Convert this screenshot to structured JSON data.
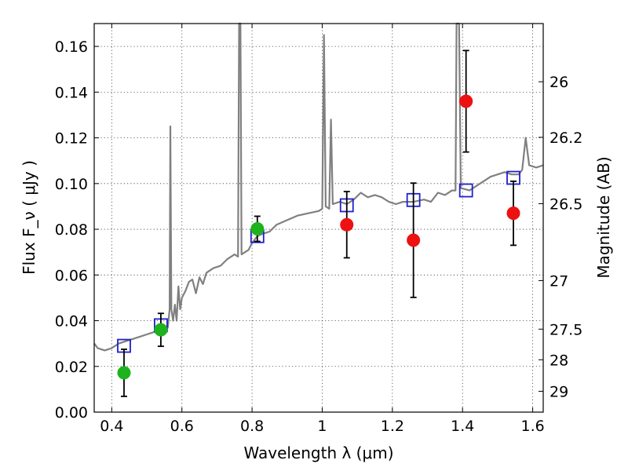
{
  "chart_data": {
    "type": "scatter",
    "xlabel": "Wavelength  λ (μm)",
    "ylabel": "Flux  F_ν  ( μJy )",
    "ylabel_right": "Magnitude (AB)",
    "xlim": [
      0.35,
      1.63
    ],
    "ylim": [
      0.0,
      0.17
    ],
    "grid": true,
    "x_ticks": [
      {
        "value": 0.4,
        "label": "0.4"
      },
      {
        "value": 0.6,
        "label": "0.6"
      },
      {
        "value": 0.8,
        "label": "0.8"
      },
      {
        "value": 1.0,
        "label": "1"
      },
      {
        "value": 1.2,
        "label": "1.2"
      },
      {
        "value": 1.4,
        "label": "1.4"
      },
      {
        "value": 1.6,
        "label": "1.6"
      }
    ],
    "y_ticks": [
      {
        "value": 0.0,
        "label": "0.00"
      },
      {
        "value": 0.02,
        "label": "0.02"
      },
      {
        "value": 0.04,
        "label": "0.04"
      },
      {
        "value": 0.06,
        "label": "0.06"
      },
      {
        "value": 0.08,
        "label": "0.08"
      },
      {
        "value": 0.1,
        "label": "0.10"
      },
      {
        "value": 0.12,
        "label": "0.12"
      },
      {
        "value": 0.14,
        "label": "0.14"
      },
      {
        "value": 0.16,
        "label": "0.16"
      }
    ],
    "mag_ticks": [
      {
        "mag": 26,
        "label": "26"
      },
      {
        "mag": 26.2,
        "label": "26.2"
      },
      {
        "mag": 26.5,
        "label": "26.5"
      },
      {
        "mag": 27,
        "label": "27"
      },
      {
        "mag": 27.5,
        "label": "27.5"
      },
      {
        "mag": 28,
        "label": "28"
      },
      {
        "mag": 29,
        "label": "29"
      }
    ],
    "series": [
      {
        "marker": "circle",
        "color": "#1db31d",
        "points": [
          {
            "x": 0.435,
            "y": 0.0172,
            "err": 0.0103
          },
          {
            "x": 0.54,
            "y": 0.036,
            "err": 0.0072
          },
          {
            "x": 0.815,
            "y": 0.0802,
            "err": 0.0055
          }
        ]
      },
      {
        "marker": "circle",
        "color": "#ee1111",
        "points": [
          {
            "x": 1.07,
            "y": 0.082,
            "err": 0.0145
          },
          {
            "x": 1.26,
            "y": 0.0752,
            "err": 0.025
          },
          {
            "x": 1.41,
            "y": 0.136,
            "err": 0.0222
          },
          {
            "x": 1.545,
            "y": 0.087,
            "err": 0.014
          }
        ]
      },
      {
        "marker": "open-square",
        "color": "#1f1fd0",
        "points": [
          {
            "x": 0.435,
            "y": 0.029
          },
          {
            "x": 0.54,
            "y": 0.038
          },
          {
            "x": 0.815,
            "y": 0.077
          },
          {
            "x": 1.07,
            "y": 0.0905
          },
          {
            "x": 1.26,
            "y": 0.0928
          },
          {
            "x": 1.41,
            "y": 0.097
          },
          {
            "x": 1.545,
            "y": 0.1025
          }
        ]
      },
      {
        "marker": "line",
        "color": "#808080",
        "points": [
          [
            0.35,
            0.03
          ],
          [
            0.36,
            0.028
          ],
          [
            0.38,
            0.027
          ],
          [
            0.4,
            0.028
          ],
          [
            0.42,
            0.03
          ],
          [
            0.44,
            0.031
          ],
          [
            0.46,
            0.032
          ],
          [
            0.48,
            0.033
          ],
          [
            0.5,
            0.034
          ],
          [
            0.52,
            0.035
          ],
          [
            0.54,
            0.035
          ],
          [
            0.555,
            0.036
          ],
          [
            0.56,
            0.037
          ],
          [
            0.565,
            0.045
          ],
          [
            0.567,
            0.125
          ],
          [
            0.57,
            0.045
          ],
          [
            0.575,
            0.04
          ],
          [
            0.58,
            0.047
          ],
          [
            0.585,
            0.04
          ],
          [
            0.59,
            0.055
          ],
          [
            0.595,
            0.045
          ],
          [
            0.6,
            0.05
          ],
          [
            0.61,
            0.053
          ],
          [
            0.62,
            0.057
          ],
          [
            0.63,
            0.058
          ],
          [
            0.64,
            0.052
          ],
          [
            0.65,
            0.059
          ],
          [
            0.66,
            0.056
          ],
          [
            0.67,
            0.061
          ],
          [
            0.69,
            0.063
          ],
          [
            0.71,
            0.064
          ],
          [
            0.73,
            0.067
          ],
          [
            0.75,
            0.069
          ],
          [
            0.76,
            0.068
          ],
          [
            0.763,
            0.17
          ],
          [
            0.767,
            0.17
          ],
          [
            0.77,
            0.069
          ],
          [
            0.79,
            0.071
          ],
          [
            0.8,
            0.074
          ],
          [
            0.815,
            0.077
          ],
          [
            0.83,
            0.078
          ],
          [
            0.85,
            0.079
          ],
          [
            0.87,
            0.082
          ],
          [
            0.9,
            0.084
          ],
          [
            0.93,
            0.086
          ],
          [
            0.96,
            0.087
          ],
          [
            0.99,
            0.088
          ],
          [
            1.0,
            0.089
          ],
          [
            1.005,
            0.165
          ],
          [
            1.01,
            0.09
          ],
          [
            1.02,
            0.089
          ],
          [
            1.025,
            0.128
          ],
          [
            1.03,
            0.091
          ],
          [
            1.05,
            0.092
          ],
          [
            1.07,
            0.091
          ],
          [
            1.09,
            0.093
          ],
          [
            1.11,
            0.096
          ],
          [
            1.13,
            0.094
          ],
          [
            1.15,
            0.095
          ],
          [
            1.17,
            0.094
          ],
          [
            1.19,
            0.092
          ],
          [
            1.21,
            0.091
          ],
          [
            1.23,
            0.092
          ],
          [
            1.26,
            0.092
          ],
          [
            1.29,
            0.093
          ],
          [
            1.31,
            0.092
          ],
          [
            1.33,
            0.096
          ],
          [
            1.35,
            0.095
          ],
          [
            1.37,
            0.097
          ],
          [
            1.38,
            0.097
          ],
          [
            1.383,
            0.17
          ],
          [
            1.39,
            0.17
          ],
          [
            1.395,
            0.098
          ],
          [
            1.42,
            0.097
          ],
          [
            1.44,
            0.099
          ],
          [
            1.46,
            0.101
          ],
          [
            1.48,
            0.103
          ],
          [
            1.5,
            0.104
          ],
          [
            1.52,
            0.105
          ],
          [
            1.54,
            0.104
          ],
          [
            1.56,
            0.104
          ],
          [
            1.57,
            0.106
          ],
          [
            1.58,
            0.12
          ],
          [
            1.59,
            0.108
          ],
          [
            1.61,
            0.107
          ],
          [
            1.63,
            0.108
          ]
        ]
      }
    ]
  }
}
